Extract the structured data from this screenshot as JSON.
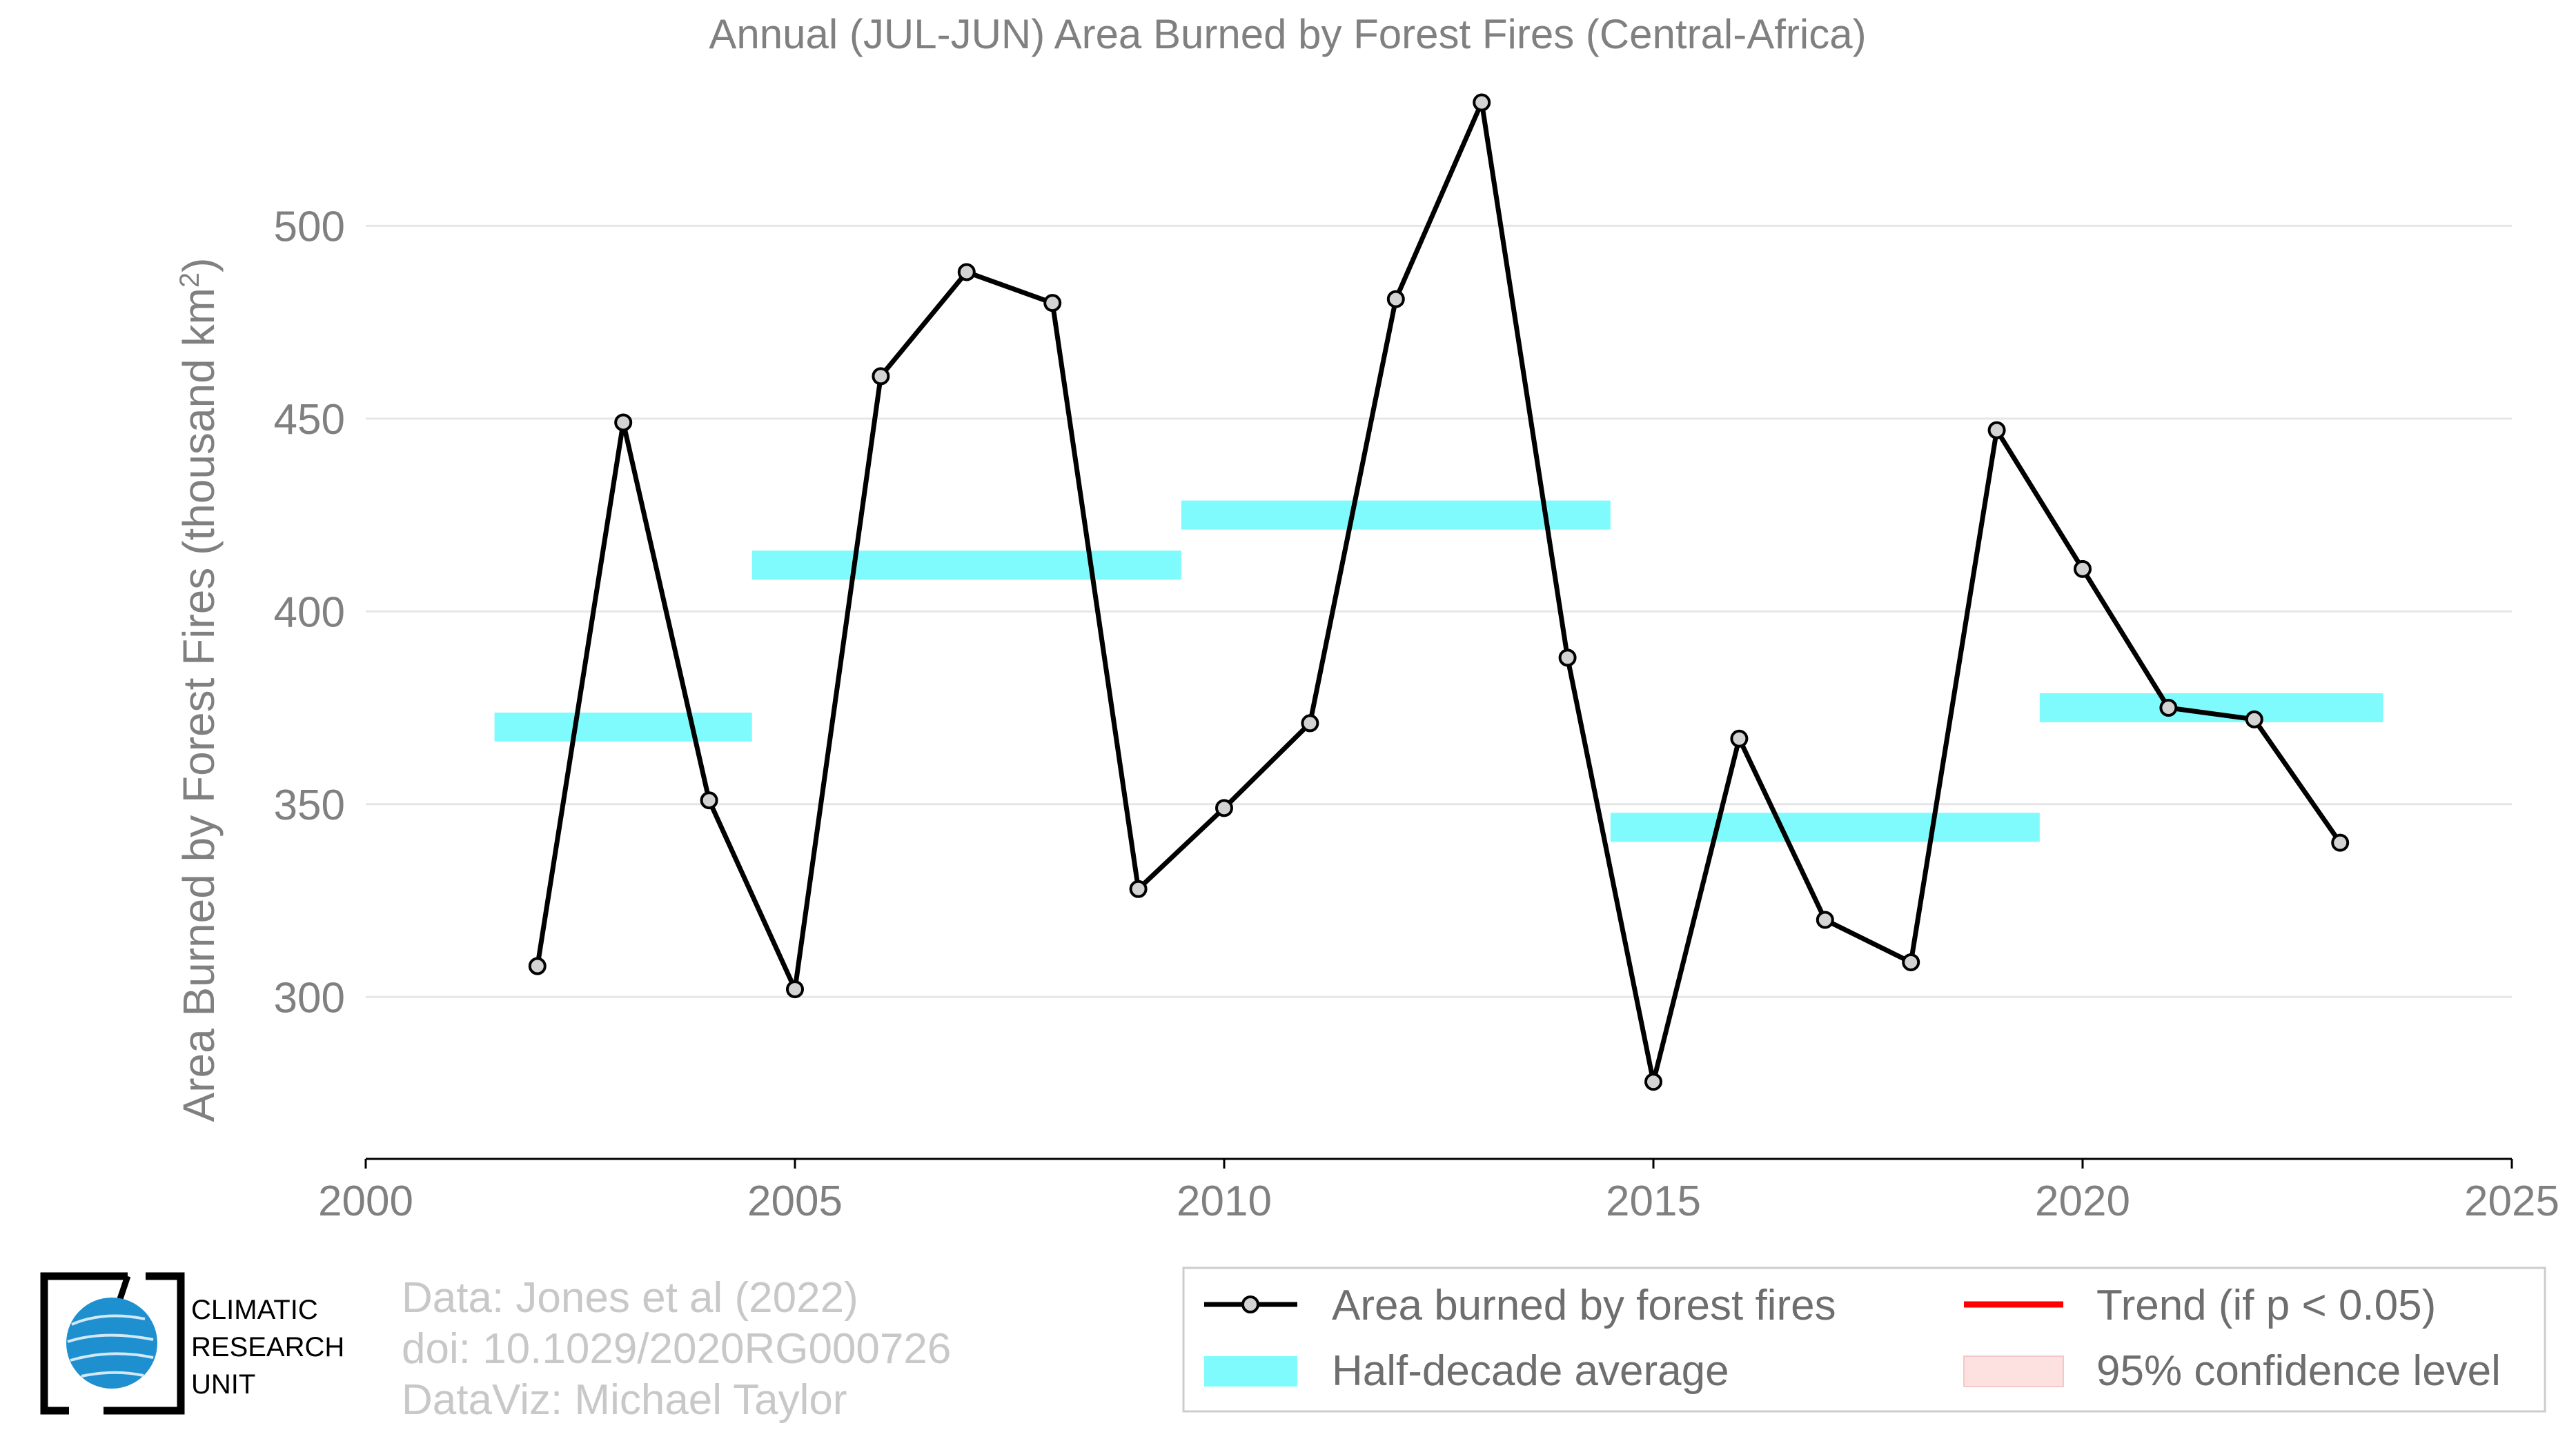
{
  "chart_data": {
    "type": "line",
    "title": "Annual (JUL-JUN) Area Burned by Forest Fires (Central-Africa)",
    "ylabel": "Area Burned by Forest Fires (thousand km",
    "ylabel_sup": "2",
    "ylabel_suffix": ")",
    "xlim": [
      2000,
      2025
    ],
    "ylim": [
      258,
      538
    ],
    "x_ticks": [
      2000,
      2005,
      2010,
      2015,
      2020,
      2025
    ],
    "y_ticks": [
      300,
      350,
      400,
      450,
      500
    ],
    "grid": "horizontal",
    "series": [
      {
        "name": "Area burned by forest fires",
        "color": "#000000",
        "marker_fill": "#d3d3d3",
        "x": [
          2002,
          2003,
          2004,
          2005,
          2006,
          2007,
          2008,
          2009,
          2010,
          2011,
          2012,
          2013,
          2014,
          2015,
          2016,
          2017,
          2018,
          2019,
          2020,
          2021,
          2022,
          2023
        ],
        "y": [
          308,
          449,
          351,
          302,
          461,
          488,
          480,
          328,
          349,
          371,
          481,
          532,
          388,
          278,
          367,
          320,
          309,
          447,
          411,
          375,
          372,
          340
        ]
      }
    ],
    "half_decade_average": {
      "name": "Half-decade average",
      "color": "#7ffbfd",
      "segments": [
        {
          "x_start": 2001.5,
          "x_end": 2004.5,
          "value": 370
        },
        {
          "x_start": 2004.5,
          "x_end": 2009.5,
          "value": 412
        },
        {
          "x_start": 2009.5,
          "x_end": 2014.5,
          "value": 425
        },
        {
          "x_start": 2014.5,
          "x_end": 2019.5,
          "value": 344
        },
        {
          "x_start": 2019.5,
          "x_end": 2023.5,
          "value": 375
        }
      ]
    },
    "legend": {
      "position": "bottom-right",
      "entries": [
        {
          "label": "Area burned by forest fires",
          "kind": "line-marker",
          "color": "#000000"
        },
        {
          "label": "Trend (if p < 0.05)",
          "kind": "line",
          "color": "#ff0000"
        },
        {
          "label": "Half-decade average",
          "kind": "band",
          "color": "#7ffbfd"
        },
        {
          "label": "95% confidence level",
          "kind": "band",
          "color": "#fde0e0"
        }
      ]
    }
  },
  "credits": {
    "line1": "Data: Jones et al (2022)",
    "line2": "doi: 10.1029/2020RG000726",
    "line3": "DataViz: Michael Taylor"
  },
  "logo": {
    "line1": "CLIMATIC",
    "line2": "RESEARCH",
    "line3": "UNIT",
    "globe_color": "#1e90d0"
  }
}
